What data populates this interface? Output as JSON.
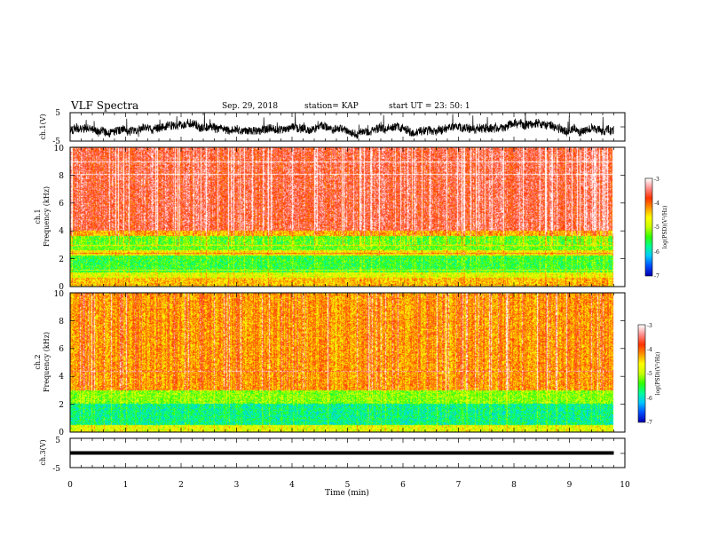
{
  "header": {
    "title": "VLF Spectra",
    "date": "Sep. 29, 2018",
    "station": "station= KAP",
    "start": "start  UT =   23: 50: 1"
  },
  "colors": {
    "spectrogram_scale": [
      "#0000b4",
      "#0050ff",
      "#00c8ff",
      "#00ff96",
      "#32ff00",
      "#c8ff00",
      "#ffff00",
      "#ff9600",
      "#ff3200",
      "#ff8c8c",
      "#ffffff"
    ],
    "trace": "#000000"
  },
  "chart_data": [
    {
      "type": "line",
      "panel": "ch1-waveform",
      "ylabel": "ch.1(V)",
      "ylim": [
        -5,
        5
      ],
      "y_ticks": [
        "5",
        "-5"
      ],
      "x_range_min": [
        0,
        9.8
      ],
      "description_values": {
        "mean": -1.0,
        "amplitude": 3.0
      }
    },
    {
      "type": "heatmap",
      "panel": "ch1-spectrogram",
      "ylabel": "ch.1\nFrequency (kHz)",
      "ylim_khz": [
        0,
        10
      ],
      "y_ticks": [
        "0",
        "2",
        "4",
        "6",
        "8",
        "10"
      ],
      "x_range_min": [
        0,
        9.8
      ],
      "colorbar": {
        "label": "log(PSD)(V²/Hz)",
        "range": [
          -7,
          -3
        ],
        "ticks": [
          "-3",
          "-4",
          "-5",
          "-6",
          "-7"
        ]
      },
      "bands_log_psd": [
        {
          "khz": [
            0.0,
            0.6
          ],
          "level": -4.4
        },
        {
          "khz": [
            0.6,
            1.0
          ],
          "level": -4.8
        },
        {
          "khz": [
            1.0,
            2.2
          ],
          "level": -5.5
        },
        {
          "khz": [
            2.2,
            2.6
          ],
          "level": -4.6
        },
        {
          "khz": [
            2.6,
            3.6
          ],
          "level": -5.3
        },
        {
          "khz": [
            3.6,
            4.0
          ],
          "level": -4.3
        },
        {
          "khz": [
            4.0,
            10.0
          ],
          "level": -3.6
        }
      ]
    },
    {
      "type": "heatmap",
      "panel": "ch2-spectrogram",
      "ylabel": "ch.2\nFrequency (kHz)",
      "ylim_khz": [
        0,
        10
      ],
      "y_ticks": [
        "0",
        "2",
        "4",
        "6",
        "8",
        "10"
      ],
      "x_range_min": [
        0,
        9.8
      ],
      "colorbar": {
        "label": "log(PSD)(V²/Hz)",
        "range": [
          -7,
          -3
        ],
        "ticks": [
          "-3",
          "-4",
          "-5",
          "-6",
          "-7"
        ]
      },
      "bands_log_psd": [
        {
          "khz": [
            0.0,
            0.5
          ],
          "level": -4.8
        },
        {
          "khz": [
            0.5,
            2.0
          ],
          "level": -5.8
        },
        {
          "khz": [
            2.0,
            3.0
          ],
          "level": -5.2
        },
        {
          "khz": [
            3.0,
            10.0
          ],
          "level": -4.2
        }
      ]
    },
    {
      "type": "line",
      "panel": "ch3-waveform",
      "ylabel": "ch.3(V)",
      "ylim": [
        -5,
        5
      ],
      "y_ticks": [
        "5",
        "-5"
      ],
      "x_range_min": [
        0,
        9.8
      ],
      "description_values": {
        "mean": 0.0,
        "amplitude": 0.0
      }
    }
  ],
  "x_axis": {
    "label": "Time (min)",
    "ticks": [
      "0",
      "1",
      "2",
      "3",
      "4",
      "5",
      "6",
      "7",
      "8",
      "9",
      "10"
    ],
    "range_min": [
      0,
      10
    ]
  }
}
